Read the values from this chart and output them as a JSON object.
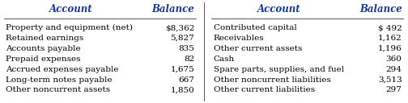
{
  "left_accounts": [
    "Property and equipment (net)",
    "Retained earnings",
    "Accounts payable",
    "Prepaid expenses",
    "Accrued expenses payable",
    "Long-term notes payable",
    "Other noncurrent assets"
  ],
  "left_balances": [
    "$8,362",
    "5,827",
    "835",
    "82",
    "1,675",
    "667",
    "1,850"
  ],
  "right_accounts": [
    "Contributed capital",
    "Receivables",
    "Other current assets",
    "Cash",
    "Spare parts, supplies, and fuel",
    "Other noncurrent liabilities",
    "Other current liabilities"
  ],
  "right_balances": [
    "$ 492",
    "1,162",
    "1,196",
    "360",
    "294",
    "3,513",
    "297"
  ],
  "header_account": "Account",
  "header_balance": "Balance",
  "header_color": "#1a3a8c",
  "bg_color": "#ffffff",
  "text_color": "#000000",
  "font_size": 7.5,
  "header_font_size": 8.5
}
